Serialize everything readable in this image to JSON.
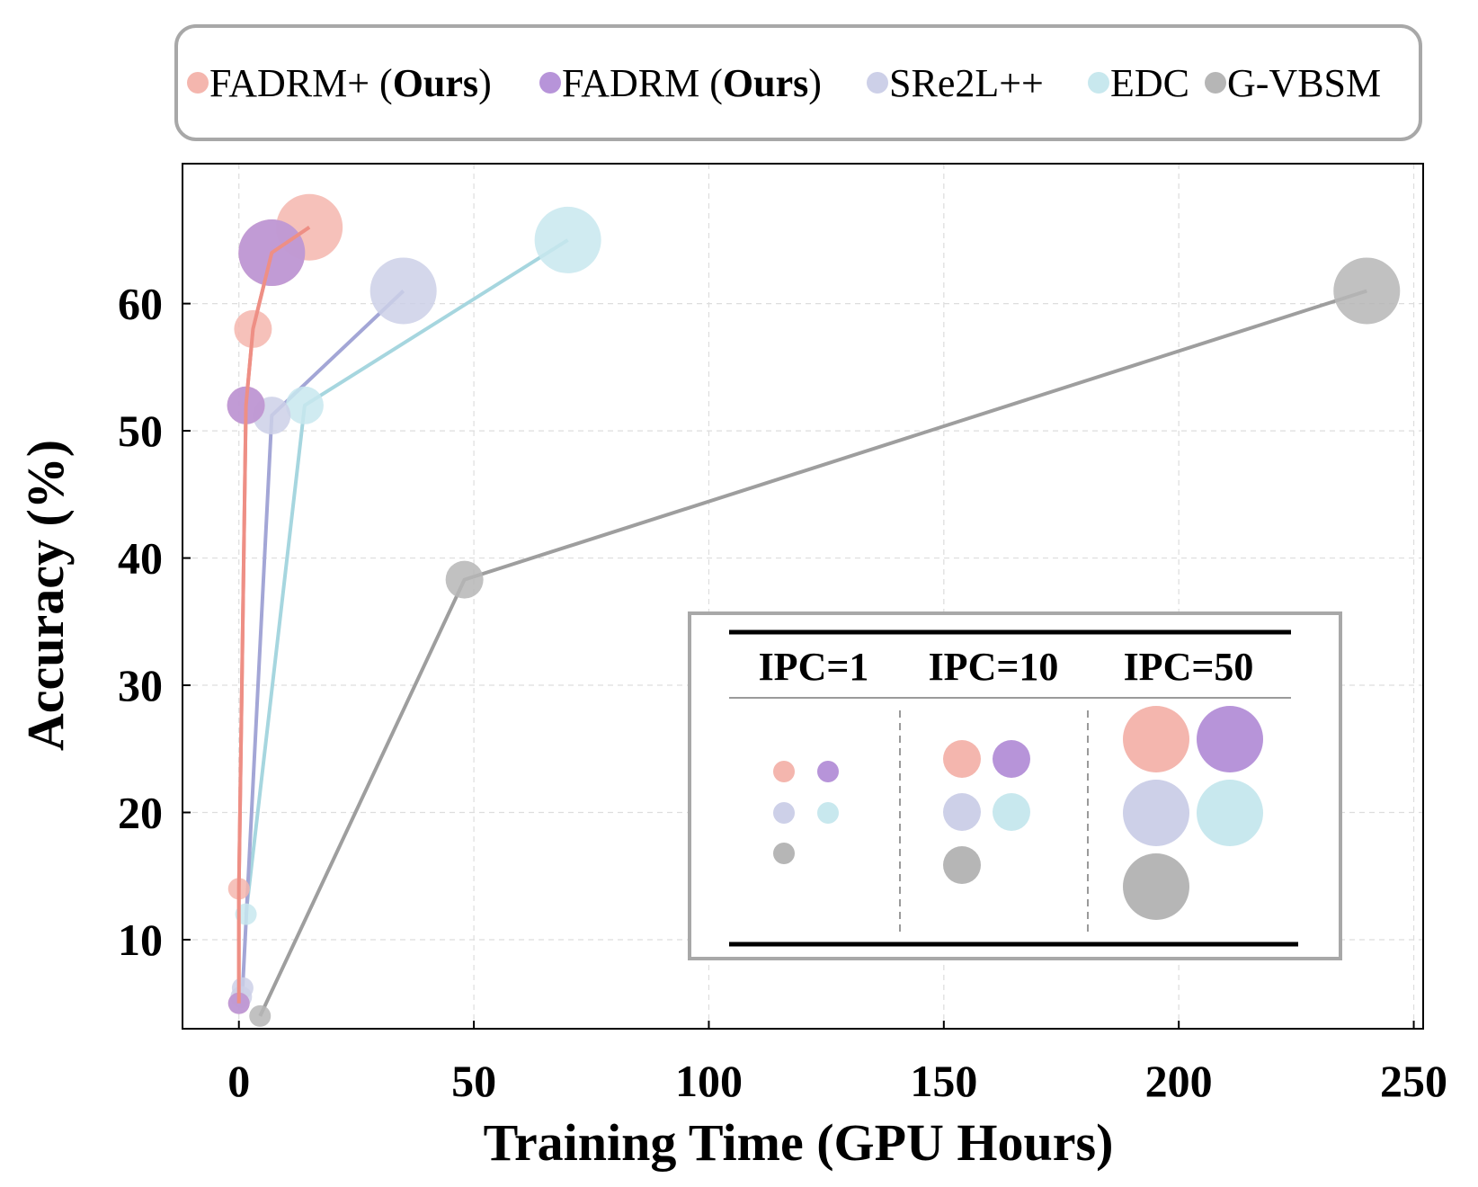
{
  "chart_data": {
    "type": "scatter",
    "xlabel": "Training Time (GPU Hours)",
    "ylabel": "Accuracy (%)",
    "xlim": [
      -12,
      252
    ],
    "ylim": [
      3,
      71
    ],
    "xticks": [
      0,
      50,
      100,
      150,
      200,
      250
    ],
    "yticks": [
      10,
      20,
      30,
      40,
      50,
      60
    ],
    "grid": true,
    "legend_position": "top",
    "series": [
      {
        "name": "FADRM+ (Ours)",
        "legend_plain": "FADRM+ (",
        "legend_bold": "Ours",
        "legend_close": ")",
        "color": "#f4b6ae",
        "line_color": "#ee8f85",
        "points": [
          {
            "x": 0,
            "y": 5,
            "ipc": 1
          },
          {
            "x": 0,
            "y": 14,
            "ipc": 1
          },
          {
            "x": 1.5,
            "y": 52,
            "ipc": 10
          },
          {
            "x": 3,
            "y": 58,
            "ipc": 10
          },
          {
            "x": 7,
            "y": 64,
            "ipc": 50
          },
          {
            "x": 15,
            "y": 66,
            "ipc": 50
          }
        ]
      },
      {
        "name": "FADRM (Ours)",
        "legend_plain": "FADRM (",
        "legend_bold": "Ours",
        "legend_close": ")",
        "color": "#b794d9",
        "line_color": "#b794d9",
        "line": false,
        "points": [
          {
            "x": 0,
            "y": 5,
            "ipc": 1
          },
          {
            "x": 1.5,
            "y": 52,
            "ipc": 10
          },
          {
            "x": 7,
            "y": 64,
            "ipc": 50
          }
        ]
      },
      {
        "name": "SRe2L++",
        "legend_plain": "SRe2L++",
        "legend_bold": "",
        "legend_close": "",
        "color": "#cdd0e8",
        "line_color": "#a3a6d6",
        "points": [
          {
            "x": 0.5,
            "y": 5.5,
            "ipc": 1
          },
          {
            "x": 0.8,
            "y": 6.2,
            "ipc": 1
          },
          {
            "x": 7,
            "y": 51.2,
            "ipc": 10
          },
          {
            "x": 35,
            "y": 61,
            "ipc": 50
          }
        ]
      },
      {
        "name": "EDC",
        "legend_plain": "EDC",
        "legend_bold": "",
        "legend_close": "",
        "color": "#c8e8ee",
        "line_color": "#a6d6df",
        "points": [
          {
            "x": 1.5,
            "y": 12,
            "ipc": 1
          },
          {
            "x": 14,
            "y": 52,
            "ipc": 10
          },
          {
            "x": 70,
            "y": 65,
            "ipc": 50
          }
        ]
      },
      {
        "name": "G-VBSM",
        "legend_plain": "G-VBSM",
        "legend_bold": "",
        "legend_close": "",
        "color": "#b6b6b6",
        "line_color": "#9e9e9e",
        "points": [
          {
            "x": 4.5,
            "y": 4,
            "ipc": 1
          },
          {
            "x": 48,
            "y": 38.3,
            "ipc": 10
          },
          {
            "x": 240,
            "y": 61,
            "ipc": 50
          }
        ]
      }
    ],
    "size_legend": {
      "headers": [
        "IPC=1",
        "IPC=10",
        "IPC=50"
      ],
      "ipc_values": [
        1,
        10,
        50
      ]
    }
  }
}
